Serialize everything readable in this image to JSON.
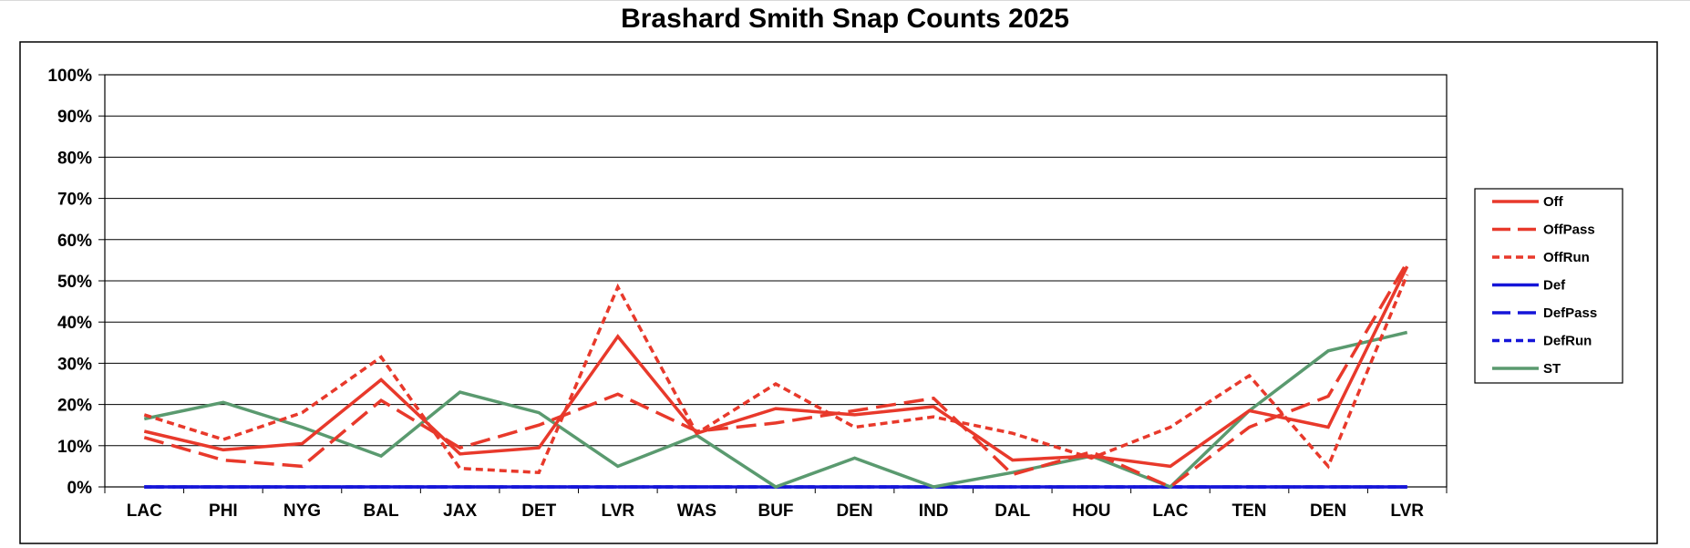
{
  "chart_data": {
    "type": "line",
    "title": "Brashard Smith Snap Counts 2025",
    "xlabel": "",
    "ylabel": "",
    "categories": [
      "LAC",
      "PHI",
      "NYG",
      "BAL",
      "JAX",
      "DET",
      "LVR",
      "WAS",
      "BUF",
      "DEN",
      "IND",
      "DAL",
      "HOU",
      "LAC",
      "TEN",
      "DEN",
      "LVR"
    ],
    "y_ticks": [
      "0%",
      "10%",
      "20%",
      "30%",
      "40%",
      "50%",
      "60%",
      "70%",
      "80%",
      "90%",
      "100%"
    ],
    "ylim": [
      0,
      100
    ],
    "grid": true,
    "legend_position": "right",
    "series": [
      {
        "name": "Off",
        "color": "#e8392b",
        "dash": "solid",
        "values": [
          13.5,
          9,
          10.5,
          26,
          8,
          9.5,
          36.5,
          13,
          19,
          17.5,
          19.5,
          6.5,
          7.5,
          5,
          18.5,
          14.5,
          53.5
        ]
      },
      {
        "name": "OffPass",
        "color": "#e8392b",
        "dash": "longdash",
        "values": [
          12,
          6.5,
          5,
          21,
          9.5,
          15,
          22.5,
          13.5,
          15.5,
          18.5,
          21.5,
          3,
          8.5,
          0,
          14.5,
          22,
          54.5
        ]
      },
      {
        "name": "OffRun",
        "color": "#e8392b",
        "dash": "shortdash",
        "values": [
          17.5,
          11.5,
          18,
          31.5,
          4.5,
          3.5,
          48.5,
          13,
          25,
          14.5,
          17,
          13,
          7,
          14.5,
          27,
          5,
          51.5
        ]
      },
      {
        "name": "Def",
        "color": "#1515d8",
        "dash": "solid",
        "values": [
          0,
          0,
          0,
          0,
          0,
          0,
          0,
          0,
          0,
          0,
          0,
          0,
          0,
          0,
          0,
          0,
          0
        ]
      },
      {
        "name": "DefPass",
        "color": "#1515d8",
        "dash": "longdash",
        "values": [
          0,
          0,
          0,
          0,
          0,
          0,
          0,
          0,
          0,
          0,
          0,
          0,
          0,
          0,
          0,
          0,
          0
        ]
      },
      {
        "name": "DefRun",
        "color": "#1515d8",
        "dash": "shortdash",
        "values": [
          0,
          0,
          0,
          0,
          0,
          0,
          0,
          0,
          0,
          0,
          0,
          0,
          0,
          0,
          0,
          0,
          0
        ]
      },
      {
        "name": "ST",
        "color": "#5a9a6f",
        "dash": "solid",
        "values": [
          16.5,
          20.5,
          14.5,
          7.5,
          23,
          18,
          5,
          12.5,
          0,
          7,
          0,
          3.5,
          7.5,
          0,
          18.5,
          33,
          37.5
        ]
      }
    ]
  }
}
